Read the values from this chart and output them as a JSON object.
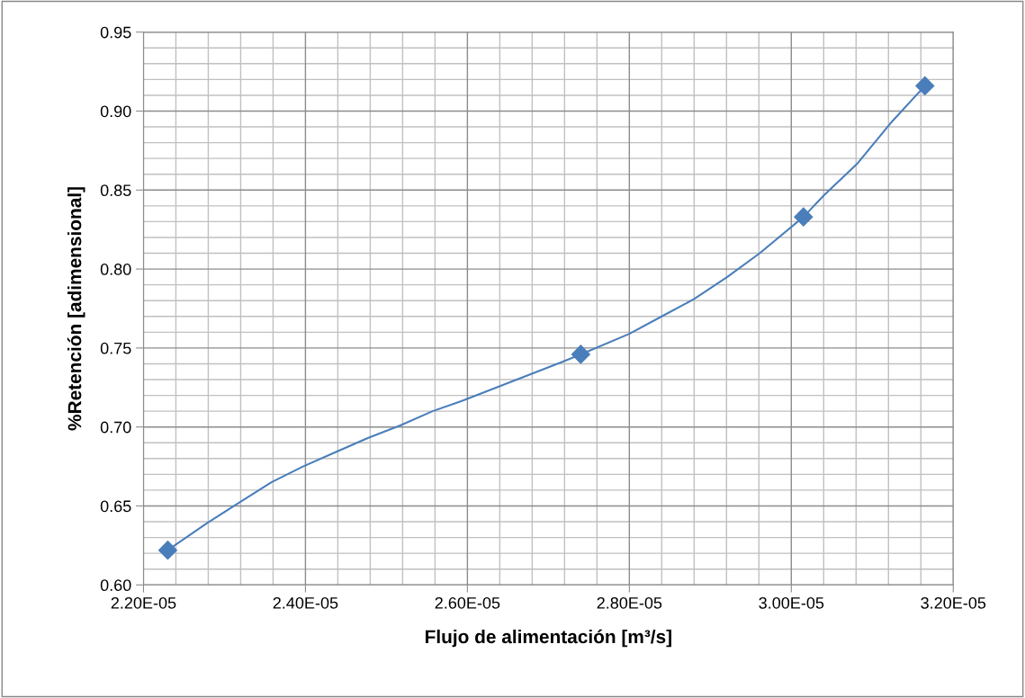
{
  "chart_data": {
    "type": "scatter",
    "xlabel": "Flujo de alimentación [m³/s]",
    "ylabel": "%Retención [adimensional]",
    "series": [
      {
        "type": "line",
        "marker": "none",
        "color": "#4a7ebb",
        "x": [
          2.23e-05,
          2.278e-05,
          2.318e-05,
          2.358e-05,
          2.397e-05,
          2.437e-05,
          2.477e-05,
          2.517e-05,
          2.557e-05,
          2.596e-05,
          2.636e-05,
          2.676e-05,
          2.716e-05,
          2.74e-05,
          2.8e-05,
          2.84e-05,
          2.88e-05,
          2.921e-05,
          2.961e-05,
          3.015e-05,
          3.041e-05,
          3.082e-05,
          3.122e-05,
          3.165e-05
        ],
        "values": [
          0.622,
          0.639,
          0.652,
          0.665,
          0.675,
          0.684,
          0.693,
          0.701,
          0.71,
          0.717,
          0.725,
          0.733,
          0.741,
          0.746,
          0.759,
          0.77,
          0.781,
          0.795,
          0.81,
          0.833,
          0.847,
          0.867,
          0.892,
          0.916
        ]
      },
      {
        "color": "#4a7ebb",
        "x": [
          2.23e-05,
          2.74e-05,
          3.015e-05,
          3.165e-05
        ],
        "values": [
          0.622,
          0.746,
          0.833,
          0.916
        ]
      }
    ],
    "marker": "diamond",
    "line_style": "solid",
    "grid": true,
    "xlim": [
      2.2e-05,
      3.2e-05
    ],
    "xticks": [
      {
        "value": 2.2e-05,
        "label": "2.20E-05"
      },
      {
        "value": 2.4e-05,
        "label": "2.40E-05"
      },
      {
        "value": 2.6e-05,
        "label": "2.60E-05"
      },
      {
        "value": 2.8e-05,
        "label": "2.80E-05"
      },
      {
        "value": 3e-05,
        "label": "3.00E-05"
      },
      {
        "value": 3.2e-05,
        "label": "3.20E-05"
      }
    ],
    "ylim": [
      0.6,
      0.95
    ],
    "yticks": [
      {
        "value": 0.6,
        "label": "0.60"
      },
      {
        "value": 0.65,
        "label": "0.65"
      },
      {
        "value": 0.7,
        "label": "0.70"
      },
      {
        "value": 0.75,
        "label": "0.75"
      },
      {
        "value": 0.8,
        "label": "0.80"
      },
      {
        "value": 0.85,
        "label": "0.85"
      },
      {
        "value": 0.9,
        "label": "0.90"
      },
      {
        "value": 0.95,
        "label": "0.95"
      }
    ]
  }
}
